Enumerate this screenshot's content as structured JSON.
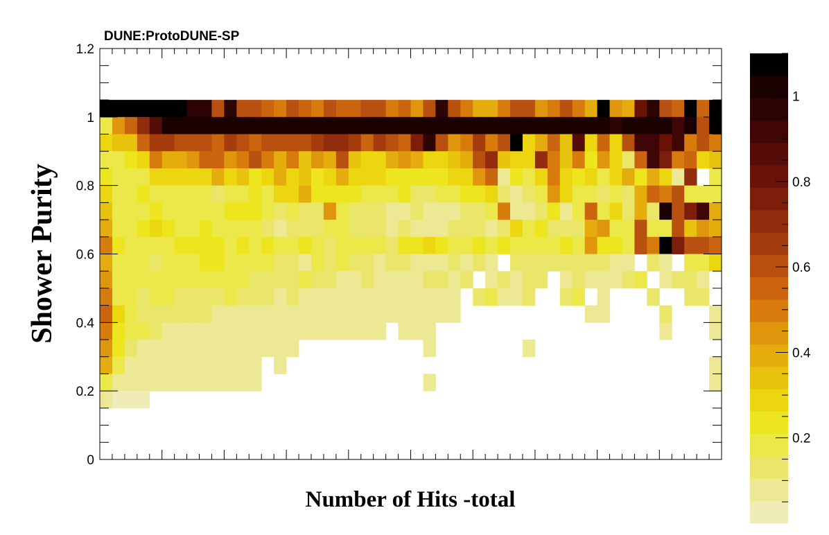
{
  "chart_data": {
    "type": "heatmap",
    "title": "DUNE:ProtoDUNE-SP",
    "xlabel": "Number of Hits -total",
    "ylabel": "Shower Purity",
    "ylim": [
      0,
      1.2
    ],
    "y_ticks": [
      "0",
      "0.2",
      "0.4",
      "0.6",
      "0.8",
      "1",
      "1.2"
    ],
    "colorbar": {
      "range": [
        0,
        1.1
      ],
      "ticks": [
        "0.2",
        "0.4",
        "0.6",
        "0.8",
        "1"
      ],
      "palette": [
        "#f0ecb8",
        "#ece894",
        "#e9e66a",
        "#ece84a",
        "#ede61e",
        "#ecd610",
        "#e8c30e",
        "#e4ac0c",
        "#df960c",
        "#d77b0c",
        "#ca640e",
        "#b85010",
        "#a53c0e",
        "#912c0c",
        "#7d1e0a",
        "#6a1208",
        "#560c08",
        "#400606",
        "#2c0404",
        "#1a0202",
        "#000000"
      ]
    },
    "grid": false,
    "bins": {
      "nx": 50,
      "ny": 24,
      "y_range": [
        0,
        1.2
      ],
      "rows": [
        [
          0,
          0,
          0,
          0,
          0,
          0,
          0,
          0,
          0,
          0,
          0,
          0,
          0,
          0,
          0,
          0,
          0,
          0,
          0,
          0,
          0,
          0,
          0,
          0,
          0,
          0,
          0,
          0,
          0,
          0,
          0,
          0,
          0,
          0,
          0,
          0,
          0,
          0,
          0,
          0,
          0,
          0,
          0,
          0,
          0,
          0,
          0,
          0,
          0,
          0
        ],
        [
          0,
          0,
          0,
          0,
          0,
          0,
          0,
          0,
          0,
          0,
          0,
          0,
          0,
          0,
          0,
          0,
          0,
          0,
          0,
          0,
          0,
          0,
          0,
          0,
          0,
          0,
          0,
          0,
          0,
          0,
          0,
          0,
          0,
          0,
          0,
          0,
          0,
          0,
          0,
          0,
          0,
          0,
          0,
          0,
          0,
          0,
          0,
          0,
          0,
          0
        ],
        [
          0,
          0,
          0,
          0,
          0,
          0,
          0,
          0,
          0,
          0,
          0,
          0,
          0,
          0,
          0,
          0,
          0,
          0,
          0,
          0,
          0,
          0,
          0,
          0,
          0,
          0,
          0,
          0,
          0,
          0,
          0,
          0,
          0,
          0,
          0,
          0,
          0,
          0,
          0,
          0,
          0,
          0,
          0,
          0,
          0,
          0,
          0,
          0,
          0,
          0
        ],
        [
          1.05,
          1.05,
          1.05,
          1.05,
          1.05,
          1.05,
          1.05,
          0.95,
          0.95,
          0.62,
          0.95,
          0.6,
          0.62,
          0.55,
          0.5,
          0.62,
          0.55,
          0.5,
          0.62,
          0.55,
          0.55,
          0.62,
          0.6,
          0.5,
          0.55,
          0.45,
          0.6,
          0.95,
          0.62,
          0.5,
          0.38,
          0.38,
          0.5,
          0.6,
          0.62,
          0.45,
          0.5,
          0.62,
          0.5,
          0.4,
          1.05,
          0.45,
          0.38,
          0.8,
          0.95,
          0.62,
          0.55,
          1.05,
          0.55,
          1.05
        ],
        [
          0.2,
          0.45,
          0.55,
          0.7,
          0.85,
          1.0,
          1.0,
          1.0,
          1.0,
          1.0,
          1.0,
          1.0,
          1.0,
          1.0,
          1.0,
          1.0,
          1.0,
          1.0,
          1.0,
          1.0,
          1.0,
          1.0,
          1.0,
          1.0,
          1.0,
          1.0,
          1.0,
          1.0,
          1.0,
          1.0,
          1.0,
          1.0,
          1.0,
          1.0,
          1.0,
          1.0,
          1.0,
          1.0,
          1.0,
          1.0,
          1.0,
          0.95,
          1.0,
          1.0,
          1.0,
          1.0,
          0.9,
          1.0,
          0.62,
          1.05
        ],
        [
          0.3,
          0.35,
          0.35,
          0.55,
          0.65,
          0.65,
          0.6,
          0.62,
          0.6,
          0.55,
          0.65,
          0.6,
          0.55,
          0.62,
          0.62,
          0.6,
          0.62,
          0.65,
          0.7,
          0.72,
          0.65,
          0.55,
          0.65,
          0.62,
          0.55,
          0.75,
          0.95,
          0.62,
          0.45,
          0.5,
          0.65,
          0.5,
          0.62,
          1.05,
          0.3,
          0.4,
          0.55,
          0.35,
          0.85,
          0.3,
          0.55,
          0.3,
          0.6,
          0.9,
          0.9,
          0.8,
          0.9,
          0.5,
          0.6,
          0.5
        ],
        [
          0.2,
          0.2,
          0.25,
          0.3,
          0.5,
          0.4,
          0.4,
          0.45,
          0.55,
          0.55,
          0.45,
          0.5,
          0.62,
          0.5,
          0.4,
          0.5,
          0.35,
          0.45,
          0.4,
          0.62,
          0.35,
          0.3,
          0.3,
          0.38,
          0.45,
          0.38,
          0.3,
          0.3,
          0.35,
          0.4,
          0.62,
          0.72,
          0.35,
          0.3,
          0.3,
          0.72,
          0.5,
          0.35,
          0.5,
          0.25,
          0.45,
          0.3,
          0.15,
          0.55,
          0.9,
          0.78,
          0.5,
          0.55,
          0.3,
          0.35
        ],
        [
          0.25,
          0.18,
          0.2,
          0.2,
          0.3,
          0.3,
          0.3,
          0.3,
          0.3,
          0.4,
          0.3,
          0.35,
          0.25,
          0.3,
          0.4,
          0.3,
          0.35,
          0.25,
          0.3,
          0.4,
          0.3,
          0.3,
          0.3,
          0.25,
          0.25,
          0.25,
          0.25,
          0.25,
          0.3,
          0.3,
          0.45,
          0.55,
          0.1,
          0.25,
          0.2,
          0.3,
          0.5,
          0.3,
          0.25,
          0.3,
          0.2,
          0.28,
          0.38,
          0.25,
          0.4,
          0.3,
          0.1,
          0.7,
          0,
          0.2
        ],
        [
          0.3,
          0.2,
          0.2,
          0.25,
          0.2,
          0.2,
          0.2,
          0.2,
          0.2,
          0.15,
          0.2,
          0.2,
          0.25,
          0.2,
          0.28,
          0.3,
          0.4,
          0.25,
          0.25,
          0.25,
          0.25,
          0.2,
          0.2,
          0.2,
          0.25,
          0.15,
          0.15,
          0.2,
          0.2,
          0.25,
          0.25,
          0.3,
          0.15,
          0.1,
          0.15,
          0.2,
          0.45,
          0.3,
          0.2,
          0.2,
          0.15,
          0.2,
          0.15,
          0.4,
          0.55,
          0.5,
          0.6,
          0.2,
          0.2,
          0.2
        ],
        [
          0.35,
          0.2,
          0.2,
          0.2,
          0.25,
          0.2,
          0.2,
          0.2,
          0.2,
          0.2,
          0.25,
          0.25,
          0.25,
          0.2,
          0.15,
          0.2,
          0.15,
          0.15,
          0.45,
          0.2,
          0.15,
          0.15,
          0.15,
          0.1,
          0.1,
          0.15,
          0.1,
          0.1,
          0.1,
          0.15,
          0.15,
          0.2,
          0.5,
          0.1,
          0.1,
          0.15,
          0.25,
          0.1,
          0.2,
          0.55,
          0.2,
          0.3,
          0.15,
          0.4,
          0.15,
          1.0,
          0.6,
          0.75,
          0.9,
          0.4
        ],
        [
          0.4,
          0.2,
          0.2,
          0.25,
          0.3,
          0.25,
          0.2,
          0.2,
          0.25,
          0.2,
          0.2,
          0.2,
          0.2,
          0.15,
          0.1,
          0.15,
          0.15,
          0.15,
          0.2,
          0.2,
          0.15,
          0.15,
          0.15,
          0.1,
          0.15,
          0.1,
          0.1,
          0.1,
          0.15,
          0.15,
          0.15,
          0.1,
          0.15,
          0.3,
          0.2,
          0.25,
          0.15,
          0.15,
          0.15,
          0.4,
          0.45,
          0.2,
          0.2,
          0.6,
          0.2,
          0.2,
          0.6,
          0.35,
          0.45,
          0.4
        ],
        [
          0.5,
          0.25,
          0.2,
          0.2,
          0.2,
          0.2,
          0.25,
          0.25,
          0.25,
          0.25,
          0.2,
          0.25,
          0.2,
          0.25,
          0.2,
          0.2,
          0.25,
          0.2,
          0.15,
          0.2,
          0.2,
          0.2,
          0.2,
          0.15,
          0.25,
          0.25,
          0.3,
          0.25,
          0.2,
          0.2,
          0.25,
          0.2,
          0.25,
          0.2,
          0.2,
          0.2,
          0.2,
          0.25,
          0.2,
          0.45,
          0.25,
          0.25,
          0.2,
          0.6,
          0.5,
          1.05,
          0.75,
          0.6,
          0.6,
          0.55
        ],
        [
          0.4,
          0.2,
          0.2,
          0.2,
          0.15,
          0.2,
          0.2,
          0.2,
          0.25,
          0.25,
          0.2,
          0.2,
          0.2,
          0.2,
          0.15,
          0.15,
          0.1,
          0.2,
          0.15,
          0.2,
          0.15,
          0.15,
          0.1,
          0.15,
          0.15,
          0.1,
          0.1,
          0.1,
          0.15,
          0.1,
          0.15,
          0.1,
          0,
          0.15,
          0.15,
          0.15,
          0.15,
          0.15,
          0.15,
          0.15,
          0.15,
          0.1,
          0.1,
          0,
          0.15,
          0.1,
          0,
          0.2,
          0.2,
          0.3
        ],
        [
          0.45,
          0.2,
          0.2,
          0.2,
          0.2,
          0.2,
          0.2,
          0.2,
          0.2,
          0.2,
          0.2,
          0.2,
          0.15,
          0.15,
          0.15,
          0.15,
          0.2,
          0.15,
          0.15,
          0.1,
          0.1,
          0.15,
          0.1,
          0.1,
          0.1,
          0.1,
          0.15,
          0.15,
          0.1,
          0.15,
          0,
          0.1,
          0.15,
          0.1,
          0.15,
          0.15,
          0,
          0.1,
          0.15,
          0.1,
          0.1,
          0.1,
          0.15,
          0.2,
          0,
          0.1,
          0.15,
          0.15,
          0.1,
          0
        ],
        [
          0.5,
          0.2,
          0.2,
          0.15,
          0.2,
          0.2,
          0.15,
          0.15,
          0.15,
          0.15,
          0.2,
          0.15,
          0.15,
          0.15,
          0.1,
          0.15,
          0.1,
          0.1,
          0.1,
          0.1,
          0.1,
          0.1,
          0.1,
          0.1,
          0.1,
          0.1,
          0.1,
          0.1,
          0.1,
          0,
          0.15,
          0.2,
          0.1,
          0.1,
          0.15,
          0,
          0,
          0.15,
          0.2,
          0,
          0.1,
          0,
          0,
          0,
          0.15,
          0,
          0,
          0.15,
          0.15,
          0
        ],
        [
          0.55,
          0.3,
          0.2,
          0.15,
          0.15,
          0.15,
          0.15,
          0.15,
          0.15,
          0.1,
          0.1,
          0.1,
          0.1,
          0.1,
          0.1,
          0.1,
          0.1,
          0.1,
          0.1,
          0.1,
          0.1,
          0.1,
          0.1,
          0.1,
          0.1,
          0.1,
          0.1,
          0.1,
          0.1,
          0,
          0,
          0,
          0,
          0,
          0,
          0,
          0,
          0,
          0,
          0.1,
          0.1,
          0,
          0,
          0,
          0,
          0.15,
          0,
          0,
          0,
          0.1
        ],
        [
          0.5,
          0.25,
          0.2,
          0.2,
          0.15,
          0.1,
          0.1,
          0.1,
          0.1,
          0.1,
          0.1,
          0.1,
          0.1,
          0.1,
          0.1,
          0.1,
          0.1,
          0.1,
          0.1,
          0.1,
          0.1,
          0.1,
          0.1,
          0,
          0.1,
          0.1,
          0.1,
          0,
          0,
          0,
          0,
          0,
          0,
          0,
          0,
          0,
          0,
          0,
          0,
          0,
          0,
          0,
          0,
          0,
          0,
          0.1,
          0,
          0,
          0,
          0.1
        ],
        [
          0.45,
          0.25,
          0.15,
          0.1,
          0.1,
          0.1,
          0.1,
          0.1,
          0.1,
          0.1,
          0.1,
          0.1,
          0.1,
          0.1,
          0.1,
          0.1,
          0,
          0,
          0,
          0,
          0,
          0,
          0,
          0,
          0,
          0,
          0.1,
          0,
          0,
          0,
          0,
          0,
          0,
          0,
          0.1,
          0,
          0,
          0,
          0,
          0,
          0,
          0,
          0,
          0,
          0,
          0,
          0,
          0,
          0,
          0
        ],
        [
          0.4,
          0.2,
          0.1,
          0.1,
          0.1,
          0.1,
          0.1,
          0.1,
          0.1,
          0.1,
          0.1,
          0.1,
          0.1,
          0,
          0.1,
          0,
          0,
          0,
          0,
          0,
          0,
          0,
          0,
          0,
          0,
          0,
          0,
          0,
          0,
          0,
          0,
          0,
          0,
          0,
          0,
          0,
          0,
          0,
          0,
          0,
          0,
          0,
          0,
          0,
          0,
          0,
          0,
          0,
          0,
          0.1
        ],
        [
          0.2,
          0.1,
          0.1,
          0.1,
          0.1,
          0.1,
          0.1,
          0.1,
          0.1,
          0.1,
          0.1,
          0.1,
          0.1,
          0,
          0,
          0,
          0,
          0,
          0,
          0,
          0,
          0,
          0,
          0,
          0,
          0,
          0.1,
          0,
          0,
          0,
          0,
          0,
          0,
          0,
          0,
          0,
          0,
          0,
          0,
          0,
          0,
          0,
          0,
          0,
          0,
          0,
          0,
          0,
          0,
          0.1
        ],
        [
          0.1,
          0.05,
          0.05,
          0.05,
          0,
          0,
          0,
          0,
          0,
          0,
          0,
          0,
          0,
          0,
          0,
          0,
          0,
          0,
          0,
          0,
          0,
          0,
          0,
          0,
          0,
          0,
          0,
          0,
          0,
          0,
          0,
          0,
          0,
          0,
          0,
          0,
          0,
          0,
          0,
          0,
          0,
          0,
          0,
          0,
          0,
          0,
          0,
          0,
          0,
          0
        ],
        [
          0,
          0,
          0,
          0,
          0,
          0,
          0,
          0,
          0,
          0,
          0,
          0,
          0,
          0,
          0,
          0,
          0,
          0,
          0,
          0,
          0,
          0,
          0,
          0,
          0,
          0,
          0,
          0,
          0,
          0,
          0,
          0,
          0,
          0,
          0,
          0,
          0,
          0,
          0,
          0,
          0,
          0,
          0,
          0,
          0,
          0,
          0,
          0,
          0,
          0
        ],
        [
          0,
          0,
          0,
          0,
          0,
          0,
          0,
          0,
          0,
          0,
          0,
          0,
          0,
          0,
          0,
          0,
          0,
          0,
          0,
          0,
          0,
          0,
          0,
          0,
          0,
          0,
          0,
          0,
          0,
          0,
          0,
          0,
          0,
          0,
          0,
          0,
          0,
          0,
          0,
          0,
          0,
          0,
          0,
          0,
          0,
          0,
          0,
          0,
          0,
          0
        ],
        [
          0,
          0,
          0,
          0,
          0,
          0,
          0,
          0,
          0,
          0,
          0,
          0,
          0,
          0,
          0,
          0,
          0,
          0,
          0,
          0,
          0,
          0,
          0,
          0,
          0,
          0,
          0,
          0,
          0,
          0,
          0,
          0,
          0,
          0,
          0,
          0,
          0,
          0,
          0,
          0,
          0,
          0,
          0,
          0,
          0,
          0,
          0,
          0,
          0,
          0
        ]
      ]
    }
  }
}
